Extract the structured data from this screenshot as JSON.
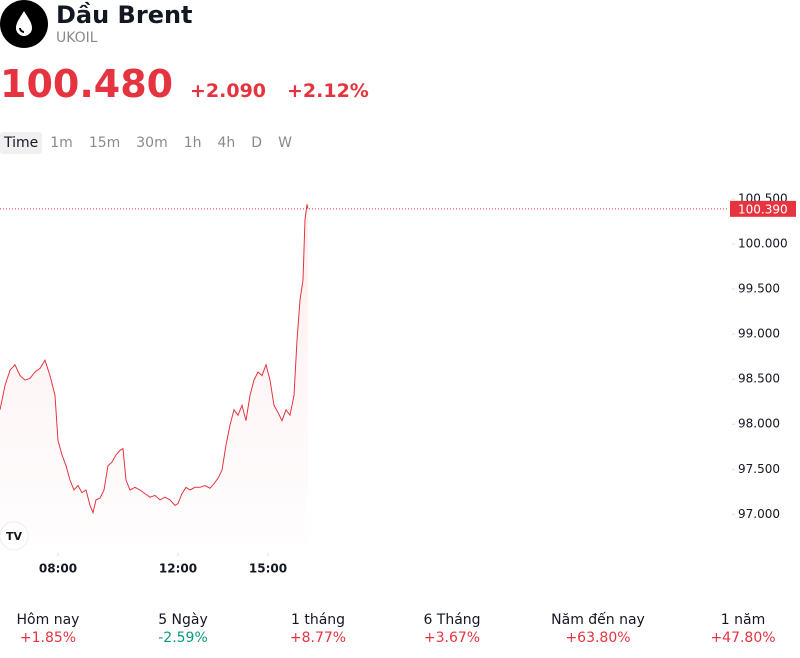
{
  "header": {
    "title": "Dầu Brent",
    "ticker": "UKOIL",
    "price": "100.480",
    "change": "+2.090",
    "change_pct": "+2.12%"
  },
  "timeframes": [
    "Time",
    "1m",
    "15m",
    "30m",
    "1h",
    "4h",
    "D",
    "W"
  ],
  "chart_data": {
    "type": "line",
    "color": "#e5343f",
    "x": [
      6.067,
      6.233,
      6.4,
      6.567,
      6.733,
      6.9,
      7.067,
      7.233,
      7.4,
      7.567,
      7.733,
      7.9,
      8,
      8.133,
      8.267,
      8.4,
      8.533,
      8.667,
      8.8,
      8.933,
      9.067,
      9.167,
      9.267,
      9.4,
      9.533,
      9.667,
      9.8,
      9.933,
      10.067,
      10.167,
      10.267,
      10.4,
      10.567,
      10.733,
      10.9,
      11.067,
      11.233,
      11.4,
      11.567,
      11.733,
      11.9,
      12,
      12.133,
      12.267,
      12.4,
      12.567,
      12.733,
      12.9,
      13.067,
      13.2,
      13.333,
      13.467,
      13.6,
      13.733,
      13.867,
      14,
      14.133,
      14.267,
      14.4,
      14.533,
      14.667,
      14.8,
      14.933,
      15.067,
      15.2,
      15.333,
      15.467,
      15.6,
      15.733,
      15.867,
      15.967,
      16.067,
      16.167,
      16.233,
      16.3,
      16.333
    ],
    "values": [
      98.16,
      98.43,
      98.6,
      98.66,
      98.54,
      98.49,
      98.51,
      98.58,
      98.62,
      98.71,
      98.54,
      98.32,
      97.82,
      97.66,
      97.54,
      97.38,
      97.27,
      97.32,
      97.24,
      97.27,
      97.1,
      97.02,
      97.16,
      97.18,
      97.27,
      97.54,
      97.58,
      97.66,
      97.71,
      97.73,
      97.38,
      97.27,
      97.3,
      97.27,
      97.23,
      97.19,
      97.21,
      97.16,
      97.19,
      97.16,
      97.1,
      97.12,
      97.23,
      97.3,
      97.27,
      97.3,
      97.3,
      97.32,
      97.29,
      97.34,
      97.4,
      97.49,
      97.77,
      97.99,
      98.16,
      98.1,
      98.21,
      98.04,
      98.32,
      98.49,
      98.58,
      98.54,
      98.66,
      98.49,
      98.21,
      98.13,
      98.04,
      98.16,
      98.1,
      98.32,
      98.93,
      99.38,
      99.6,
      100.27,
      100.44,
      100.39
    ],
    "xlim": [
      6.0667,
      30.3333
    ],
    "xticks": [
      {
        "value": 8,
        "label": "08:00"
      },
      {
        "value": 12,
        "label": "12:00"
      },
      {
        "value": 15,
        "label": "15:00"
      }
    ],
    "ylim": [
      96.66,
      100.71
    ],
    "yticks": [
      {
        "value": 97,
        "label": "97.000"
      },
      {
        "value": 97.5,
        "label": "97.500"
      },
      {
        "value": 98,
        "label": "98.000"
      },
      {
        "value": 98.5,
        "label": "98.500"
      },
      {
        "value": 99,
        "label": "99.000"
      },
      {
        "value": 99.5,
        "label": "99.500"
      },
      {
        "value": 100,
        "label": "100.000"
      },
      {
        "value": 100.5,
        "label": "100.500"
      }
    ],
    "last_value": {
      "value": 100.39,
      "label": "100.390"
    }
  },
  "performance": [
    {
      "name": "Hôm nay",
      "value": "+1.85%",
      "color": "#e5343f"
    },
    {
      "name": "5 Ngày",
      "value": "-2.59%",
      "color": "#089981"
    },
    {
      "name": "1 tháng",
      "value": "+8.77%",
      "color": "#e5343f"
    },
    {
      "name": "6 Tháng",
      "value": "+3.67%",
      "color": "#e5343f"
    },
    {
      "name": "Năm đến nay",
      "value": "+63.80%",
      "color": "#e5343f"
    },
    {
      "name": "1 năm",
      "value": "+47.80%",
      "color": "#e5343f"
    }
  ]
}
